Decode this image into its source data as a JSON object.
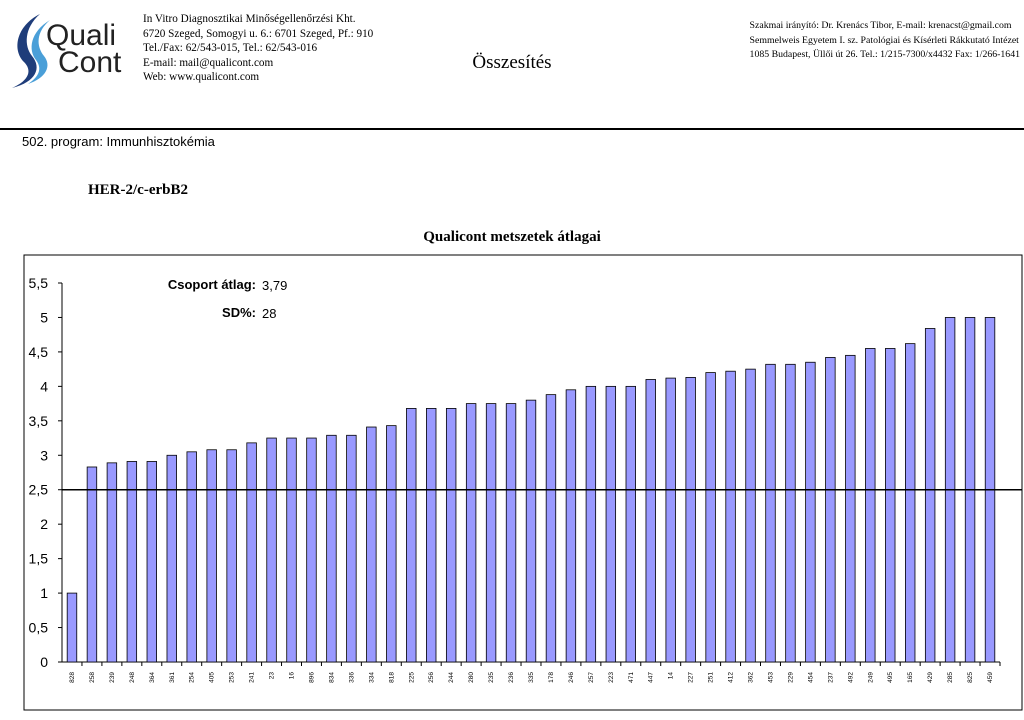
{
  "header": {
    "logo_text_line1": "Quali",
    "logo_text_line2": "Cont",
    "org_lines": [
      "In Vitro Diagnosztikai Minőségellenőrzési Kht.",
      "6720 Szeged, Somogyi u. 6.: 6701 Szeged, Pf.: 910",
      "Tel./Fax: 62/543-015, Tel.: 62/543-016",
      "E-mail: mail@qualicont.com",
      "Web: www.qualicont.com"
    ],
    "title": "Összesítés",
    "contact_lines": [
      "Szakmai irányító: Dr. Krenács Tibor, E-mail: krenacst@gmail.com",
      "Semmelweis Egyetem I. sz. Patológiai és Kísérleti Rákkutató Intézet",
      "1085 Budapest, Üllői út 26. Tel.: 1/215-7300/x4432 Fax: 1/266-1641"
    ],
    "brand_colors": {
      "swoosh_dark": "#1f3d7a",
      "swoosh_light": "#4a9fd8"
    }
  },
  "program": "502. program: Immunhisztokémia",
  "marker": "HER-2/c-erbB2",
  "annotations": {
    "group_avg_label": "Csoport átlag:",
    "group_avg_value": "3,79",
    "sd_label": "SD%:",
    "sd_value": "28"
  },
  "chart_data": {
    "type": "bar",
    "title": "Qualicont metszetek átlagai",
    "xlabel": "",
    "ylabel": "",
    "ylim": [
      0,
      5.5
    ],
    "yticks": [
      0,
      0.5,
      1,
      1.5,
      2,
      2.5,
      3,
      3.5,
      4,
      4.5,
      5,
      5.5
    ],
    "ytick_labels": [
      "0",
      "0,5",
      "1",
      "1,5",
      "2",
      "2,5",
      "3",
      "3,5",
      "4",
      "4,5",
      "5",
      "5,5"
    ],
    "reference_line": 2.5,
    "bar_color": "#9999ff",
    "grid": false,
    "categories": [
      "828",
      "258",
      "239",
      "248",
      "364",
      "361",
      "254",
      "405",
      "253",
      "241",
      "23",
      "16",
      "896",
      "834",
      "336",
      "334",
      "818",
      "225",
      "256",
      "244",
      "280",
      "235",
      "236",
      "335",
      "178",
      "246",
      "257",
      "223",
      "471",
      "447",
      "14",
      "227",
      "251",
      "412",
      "362",
      "453",
      "229",
      "454",
      "237",
      "492",
      "249",
      "495",
      "165",
      "429",
      "285",
      "825",
      "459"
    ],
    "values": [
      1.0,
      2.83,
      2.89,
      2.91,
      2.91,
      3.0,
      3.05,
      3.08,
      3.08,
      3.18,
      3.25,
      3.25,
      3.25,
      3.29,
      3.29,
      3.41,
      3.43,
      3.68,
      3.68,
      3.68,
      3.75,
      3.75,
      3.75,
      3.8,
      3.88,
      3.95,
      4.0,
      4.0,
      4.0,
      4.1,
      4.12,
      4.13,
      4.2,
      4.22,
      4.25,
      4.32,
      4.32,
      4.35,
      4.42,
      4.45,
      4.55,
      4.55,
      4.62,
      4.84,
      5.0,
      5.0,
      5.0
    ]
  }
}
